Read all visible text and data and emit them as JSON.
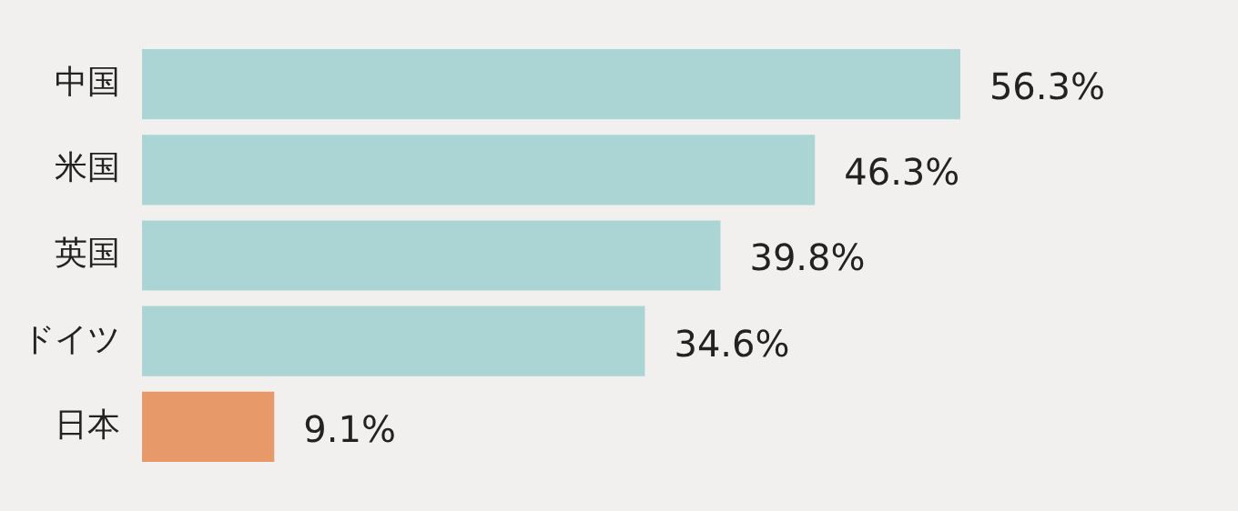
{
  "chart_data": {
    "type": "bar",
    "orientation": "horizontal",
    "categories": [
      "中国",
      "米国",
      "英国",
      "ドイツ",
      "日本"
    ],
    "values": [
      56.3,
      46.3,
      39.8,
      34.6,
      9.1
    ],
    "colors": [
      "#abd5d4",
      "#abd5d4",
      "#abd5d4",
      "#abd5d4",
      "#e8996a"
    ],
    "value_labels": [
      "56.3%",
      "46.3%",
      "39.8%",
      "34.6%",
      "9.1%"
    ],
    "tick_labels": "y"
  }
}
